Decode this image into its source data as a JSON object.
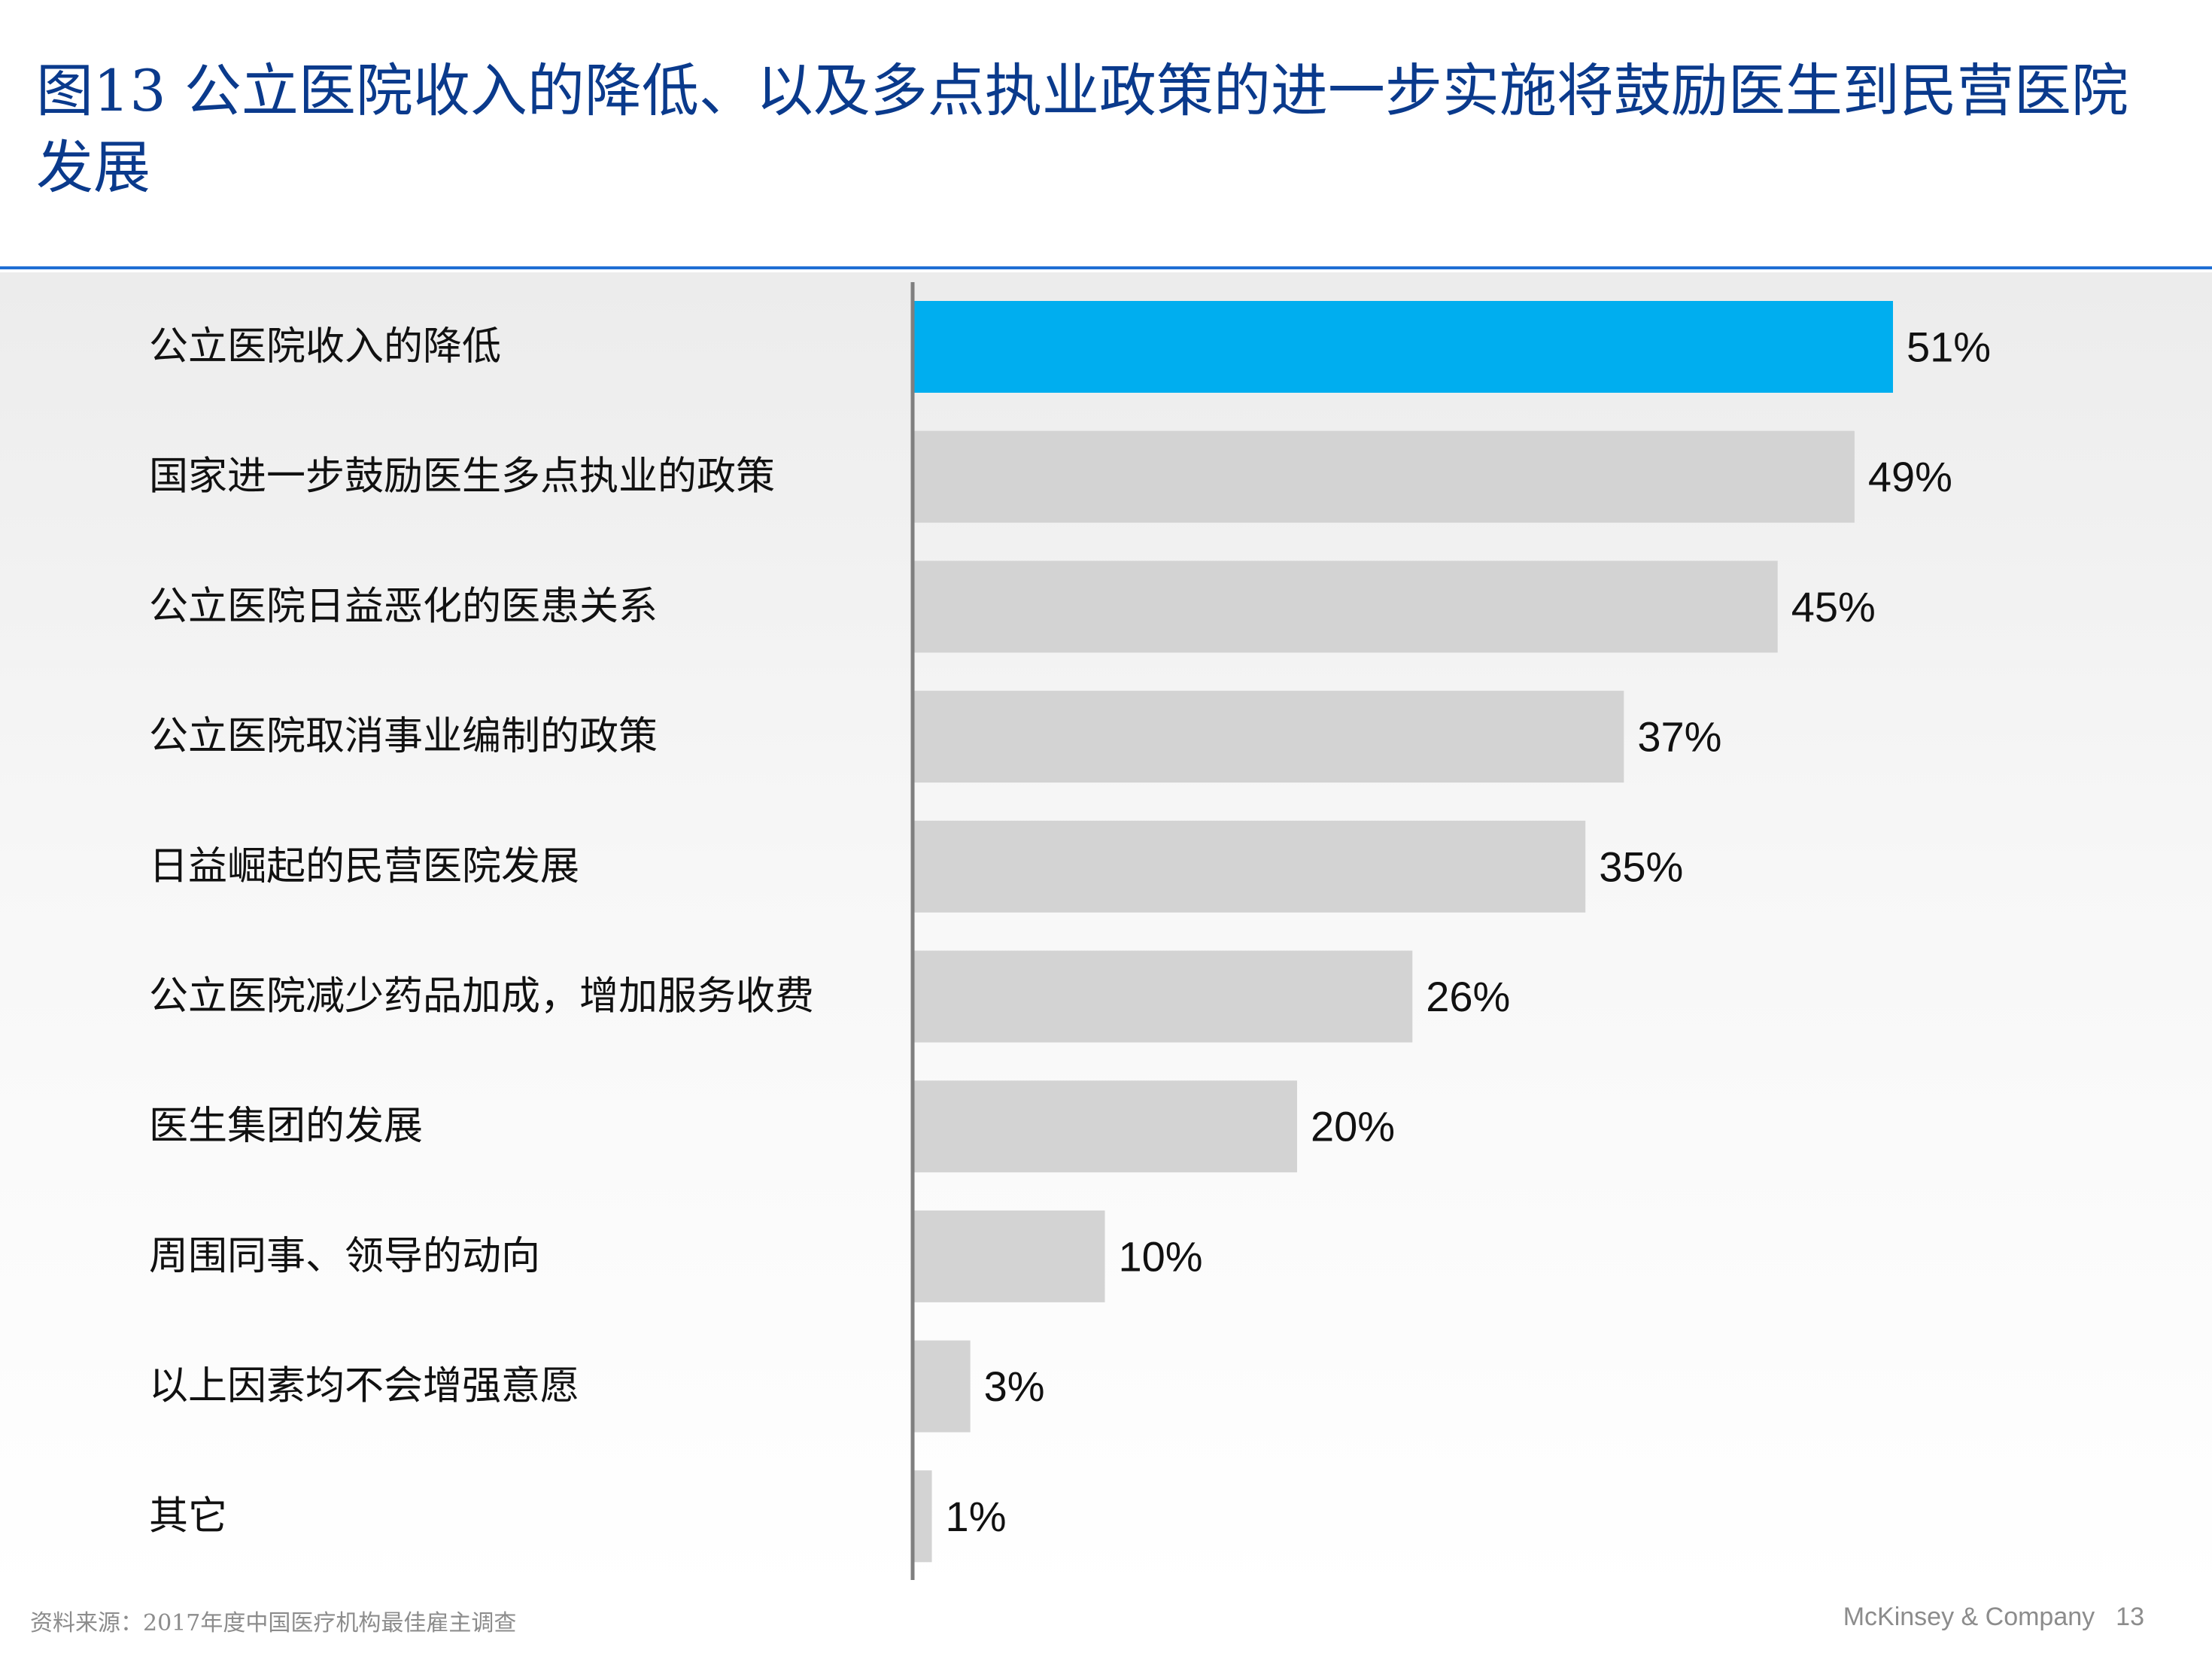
{
  "header": {
    "title": "图13 公立医院收入的降低、以及多点执业政策的进一步实施将鼓励医生到民营医院发展"
  },
  "footer": {
    "source": "资料来源：2017年度中国医疗机构最佳雇主调查",
    "company": "McKinsey & Company",
    "page_number": "13"
  },
  "colors": {
    "highlight_bar": "#00aeef",
    "bar": "#d3d3d3",
    "axis": "#7f7f7f",
    "title": "#0a3a8c"
  },
  "chart_data": {
    "type": "bar",
    "orientation": "horizontal",
    "title": "",
    "xlabel": "",
    "ylabel": "",
    "xlim": [
      0,
      51
    ],
    "grid": false,
    "categories": [
      "公立医院收入的降低",
      "国家进一步鼓励医生多点执业的政策",
      "公立医院日益恶化的医患关系",
      "公立医院取消事业编制的政策",
      "日益崛起的民营医院发展",
      "公立医院减少药品加成，增加服务收费",
      "医生集团的发展",
      "周围同事、领导的动向",
      "以上因素均不会增强意愿",
      "其它"
    ],
    "values": [
      51,
      49,
      45,
      37,
      35,
      26,
      20,
      10,
      3,
      1
    ],
    "value_labels": [
      "51%",
      "49%",
      "45%",
      "37%",
      "35%",
      "26%",
      "20%",
      "10%",
      "3%",
      "1%"
    ],
    "highlighted_index": 0
  }
}
